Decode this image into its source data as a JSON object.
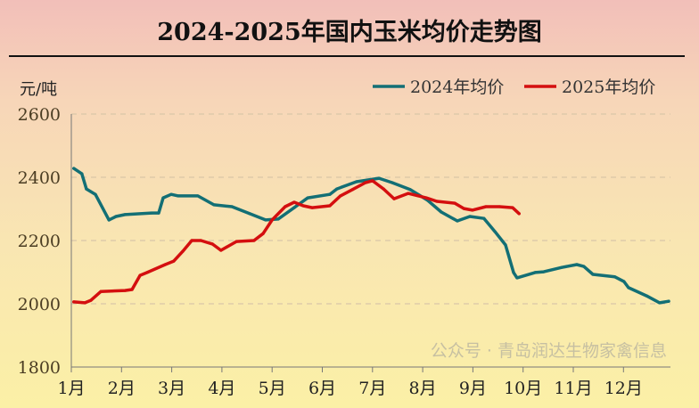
{
  "chart_data": {
    "type": "line",
    "title": "2024-2025年国内玉米均价走势图",
    "ylabel": "元/吨",
    "xlabel": "",
    "categories": [
      "1月",
      "2月",
      "3月",
      "4月",
      "5月",
      "6月",
      "7月",
      "8月",
      "9月",
      "10月",
      "11月",
      "12月"
    ],
    "yticks": [
      "1800",
      "2000",
      "2200",
      "2400",
      "2600"
    ],
    "ylim": [
      1800,
      2600
    ],
    "xlim": [
      1,
      13
    ],
    "grid": "horizontal dashed",
    "legend": "top-right",
    "series": [
      {
        "name": "2024年均价",
        "color": "#136f75",
        "x": [
          1.05,
          1.21,
          1.3,
          1.48,
          1.75,
          1.89,
          2.07,
          2.6,
          2.74,
          2.83,
          2.99,
          3.13,
          3.52,
          3.84,
          4.2,
          4.55,
          4.87,
          5.12,
          5.44,
          5.71,
          6.15,
          6.29,
          6.68,
          7.13,
          7.39,
          7.75,
          8.1,
          8.37,
          8.69,
          8.94,
          9.22,
          9.44,
          9.65,
          9.81,
          9.88,
          10.24,
          10.41,
          10.77,
          11.07,
          11.21,
          11.39,
          11.83,
          12.01,
          12.1,
          12.46,
          12.72,
          12.9
        ],
        "y": [
          2428,
          2411,
          2363,
          2346,
          2265,
          2276,
          2282,
          2287,
          2287,
          2335,
          2346,
          2341,
          2341,
          2313,
          2307,
          2285,
          2265,
          2268,
          2304,
          2335,
          2346,
          2363,
          2386,
          2397,
          2383,
          2361,
          2327,
          2290,
          2262,
          2276,
          2270,
          2228,
          2186,
          2099,
          2082,
          2099,
          2101,
          2115,
          2124,
          2118,
          2093,
          2085,
          2070,
          2051,
          2025,
          2003,
          2008
        ]
      },
      {
        "name": "2025年均价",
        "color": "#d40f0f",
        "x": [
          1.05,
          1.27,
          1.39,
          1.59,
          2.07,
          2.21,
          2.37,
          2.51,
          2.87,
          3.04,
          3.22,
          3.4,
          3.58,
          3.81,
          3.98,
          4.29,
          4.64,
          4.82,
          5.0,
          5.26,
          5.44,
          5.62,
          5.8,
          6.15,
          6.36,
          6.6,
          6.86,
          7.0,
          7.22,
          7.43,
          7.71,
          8.07,
          8.28,
          8.64,
          8.82,
          8.99,
          9.26,
          9.53,
          9.79,
          9.92
        ],
        "y": [
          2006,
          2003,
          2011,
          2039,
          2042,
          2045,
          2090,
          2099,
          2124,
          2135,
          2166,
          2200,
          2200,
          2189,
          2169,
          2197,
          2200,
          2222,
          2265,
          2307,
          2321,
          2310,
          2304,
          2310,
          2341,
          2361,
          2383,
          2389,
          2363,
          2332,
          2349,
          2335,
          2324,
          2318,
          2301,
          2296,
          2307,
          2307,
          2304,
          2285
        ]
      }
    ]
  },
  "watermark": "公众号 · 青岛润达生物家禽信息"
}
